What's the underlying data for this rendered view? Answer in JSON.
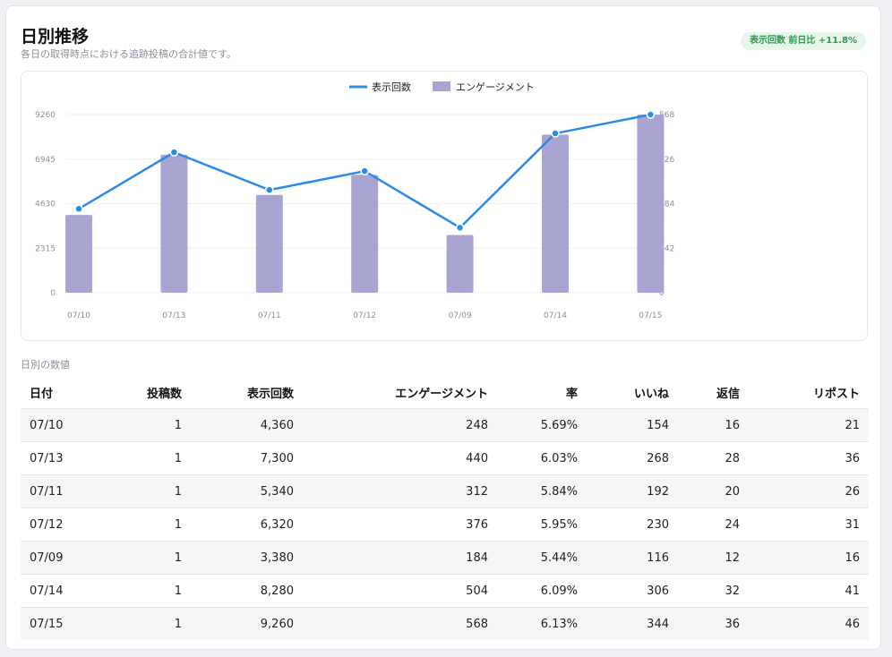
{
  "header": {
    "title": "日別推移",
    "subtitle": "各日の取得時点における追跡投稿の合計値です。",
    "badge": "表示回数 前日比 +11.8%"
  },
  "colors": {
    "line": "#2b8be6",
    "bar": "#a9a5d2",
    "badge_bg": "#e6f6ea",
    "badge_text": "#2f9a4d"
  },
  "chart_data": {
    "type": "bar+line",
    "categories": [
      "07/10",
      "07/13",
      "07/11",
      "07/12",
      "07/09",
      "07/14",
      "07/15"
    ],
    "series": [
      {
        "name": "表示回数",
        "type": "line",
        "axis": "left",
        "values": [
          4360,
          7300,
          5340,
          6320,
          3380,
          8280,
          9260
        ]
      },
      {
        "name": "エンゲージメント",
        "type": "bar",
        "axis": "right",
        "values": [
          248,
          440,
          312,
          376,
          184,
          504,
          568
        ]
      }
    ],
    "y_left": {
      "ticks": [
        "0",
        "2315",
        "4630",
        "6945",
        "9260"
      ],
      "max": 9260
    },
    "y_right": {
      "ticks": [
        "0",
        "142",
        "284",
        "426",
        "568"
      ],
      "max": 568
    },
    "grid": true,
    "legend": "top-center"
  },
  "table": {
    "section_label": "日別の数値",
    "headers": [
      "日付",
      "投稿数",
      "表示回数",
      "エンゲージメント",
      "率",
      "いいね",
      "返信",
      "リポスト"
    ],
    "rows": [
      [
        "07/10",
        "1",
        "4,360",
        "248",
        "5.69%",
        "154",
        "16",
        "21"
      ],
      [
        "07/13",
        "1",
        "7,300",
        "440",
        "6.03%",
        "268",
        "28",
        "36"
      ],
      [
        "07/11",
        "1",
        "5,340",
        "312",
        "5.84%",
        "192",
        "20",
        "26"
      ],
      [
        "07/12",
        "1",
        "6,320",
        "376",
        "5.95%",
        "230",
        "24",
        "31"
      ],
      [
        "07/09",
        "1",
        "3,380",
        "184",
        "5.44%",
        "116",
        "12",
        "16"
      ],
      [
        "07/14",
        "1",
        "8,280",
        "504",
        "6.09%",
        "306",
        "32",
        "41"
      ],
      [
        "07/15",
        "1",
        "9,260",
        "568",
        "6.13%",
        "344",
        "36",
        "46"
      ]
    ]
  }
}
